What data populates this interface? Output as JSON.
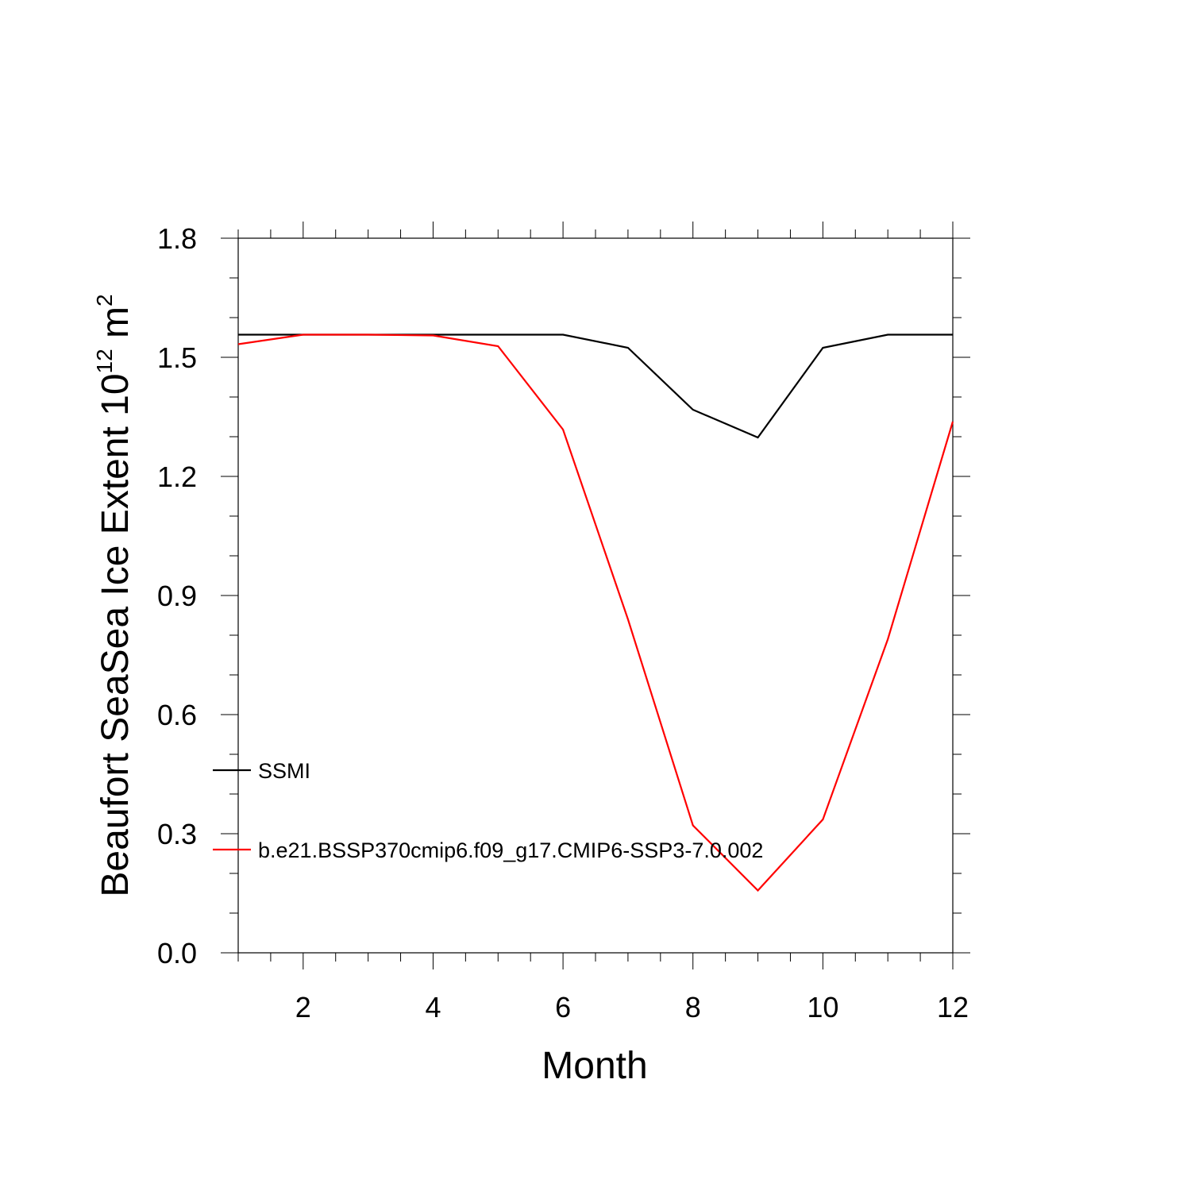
{
  "chart_data": {
    "type": "line",
    "title": "",
    "xlabel": "Month",
    "ylabel": {
      "text": "Beaufort SeaSea Ice Extent 10",
      "sup1": "12",
      "unit": " m",
      "sup2": "2"
    },
    "x": [
      1,
      2,
      3,
      4,
      5,
      6,
      7,
      8,
      9,
      10,
      11,
      12
    ],
    "xlim": [
      1,
      12
    ],
    "ylim": [
      0.0,
      1.8
    ],
    "xticks": [
      2,
      4,
      6,
      8,
      10,
      12
    ],
    "xtick_labels": [
      "2",
      "4",
      "6",
      "8",
      "10",
      "12"
    ],
    "yticks": [
      0.0,
      0.3,
      0.6,
      0.9,
      1.2,
      1.5,
      1.8
    ],
    "ytick_labels": [
      "0.0",
      "0.3",
      "0.6",
      "0.9",
      "1.2",
      "1.5",
      "1.8"
    ],
    "legend_position": "left-lower-inside",
    "series": [
      {
        "name": "SSMI",
        "color": "#000000",
        "values": [
          1.557,
          1.557,
          1.557,
          1.557,
          1.557,
          1.557,
          1.524,
          1.368,
          1.298,
          1.524,
          1.557,
          1.557
        ]
      },
      {
        "name": "b.e21.BSSP370cmip6.f09_g17.CMIP6-SSP3-7.0.002",
        "color": "#ff0000",
        "values": [
          1.533,
          1.557,
          1.557,
          1.555,
          1.528,
          1.318,
          0.84,
          0.321,
          0.157,
          0.336,
          0.79,
          1.338
        ]
      }
    ]
  }
}
